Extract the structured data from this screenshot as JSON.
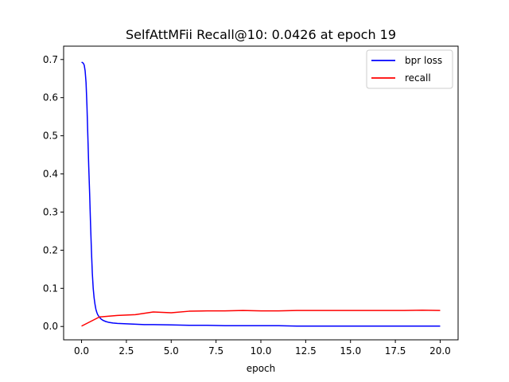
{
  "chart_data": {
    "type": "line",
    "title": "SelfAttMFii Recall@10: 0.0426 at epoch 19",
    "xlabel": "epoch",
    "ylabel": "",
    "xlim": [
      -1.0,
      21.0
    ],
    "ylim": [
      -0.035,
      0.735
    ],
    "xticks": [
      0.0,
      2.5,
      5.0,
      7.5,
      10.0,
      12.5,
      15.0,
      17.5,
      20.0
    ],
    "xtick_labels": [
      "0.0",
      "2.5",
      "5.0",
      "7.5",
      "10.0",
      "12.5",
      "15.0",
      "17.5",
      "20.0"
    ],
    "yticks": [
      0.0,
      0.1,
      0.2,
      0.3,
      0.4,
      0.5,
      0.6,
      0.7
    ],
    "ytick_labels": [
      "0.0",
      "0.1",
      "0.2",
      "0.3",
      "0.4",
      "0.5",
      "0.6",
      "0.7"
    ],
    "grid": false,
    "legend_position": "top-right",
    "series": [
      {
        "name": "bpr loss",
        "color": "#0000ff",
        "x": [
          0.0,
          0.05,
          0.1,
          0.15,
          0.2,
          0.25,
          0.3,
          0.35,
          0.4,
          0.45,
          0.5,
          0.55,
          0.6,
          0.65,
          0.7,
          0.75,
          0.8,
          0.85,
          0.9,
          1.0,
          1.1,
          1.2,
          1.35,
          1.5,
          1.75,
          2.0,
          2.5,
          3.0,
          3.5,
          4.0,
          5.0,
          6.0,
          7.0,
          8.0,
          9.0,
          10.0,
          11.0,
          12.0,
          13.0,
          14.0,
          15.0,
          16.0,
          17.0,
          18.0,
          19.0,
          20.0
        ],
        "y": [
          0.693,
          0.692,
          0.69,
          0.685,
          0.67,
          0.64,
          0.58,
          0.5,
          0.42,
          0.35,
          0.27,
          0.2,
          0.14,
          0.1,
          0.075,
          0.058,
          0.045,
          0.037,
          0.031,
          0.024,
          0.019,
          0.016,
          0.013,
          0.011,
          0.009,
          0.008,
          0.007,
          0.006,
          0.005,
          0.005,
          0.004,
          0.003,
          0.003,
          0.002,
          0.002,
          0.002,
          0.002,
          0.001,
          0.001,
          0.001,
          0.001,
          0.001,
          0.001,
          0.001,
          0.001,
          0.001
        ]
      },
      {
        "name": "recall",
        "color": "#ff0000",
        "x": [
          0,
          1,
          2,
          3,
          4,
          5,
          6,
          7,
          8,
          9,
          10,
          11,
          12,
          13,
          14,
          15,
          16,
          17,
          18,
          19,
          20
        ],
        "y": [
          0.001,
          0.025,
          0.029,
          0.031,
          0.038,
          0.036,
          0.04,
          0.041,
          0.041,
          0.042,
          0.041,
          0.041,
          0.042,
          0.042,
          0.042,
          0.042,
          0.042,
          0.042,
          0.042,
          0.0426,
          0.042
        ]
      }
    ]
  }
}
